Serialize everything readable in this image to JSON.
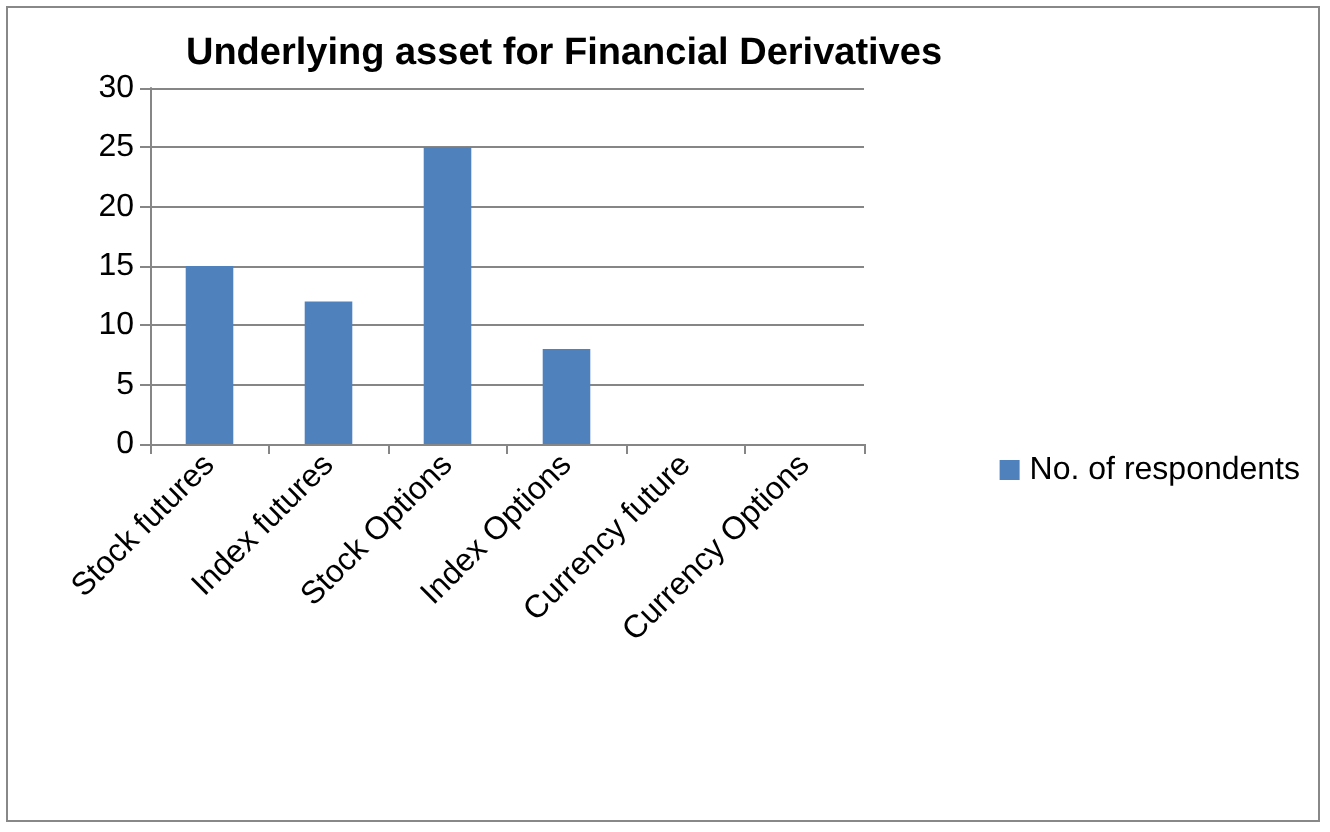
{
  "chart_data": {
    "type": "bar",
    "title": "Underlying asset for Financial Derivatives",
    "categories": [
      "Stock futures",
      "Index futures",
      "Stock Options",
      "Index Options",
      "Currency future",
      "Currency Options"
    ],
    "series": [
      {
        "name": "No. of respondents",
        "color": "#4f81bd",
        "values": [
          15,
          12,
          25,
          8,
          0,
          0
        ]
      }
    ],
    "ylim": [
      0,
      30
    ],
    "yticks": [
      0,
      5,
      10,
      15,
      20,
      25,
      30
    ],
    "grid": "y",
    "legend": "right"
  }
}
